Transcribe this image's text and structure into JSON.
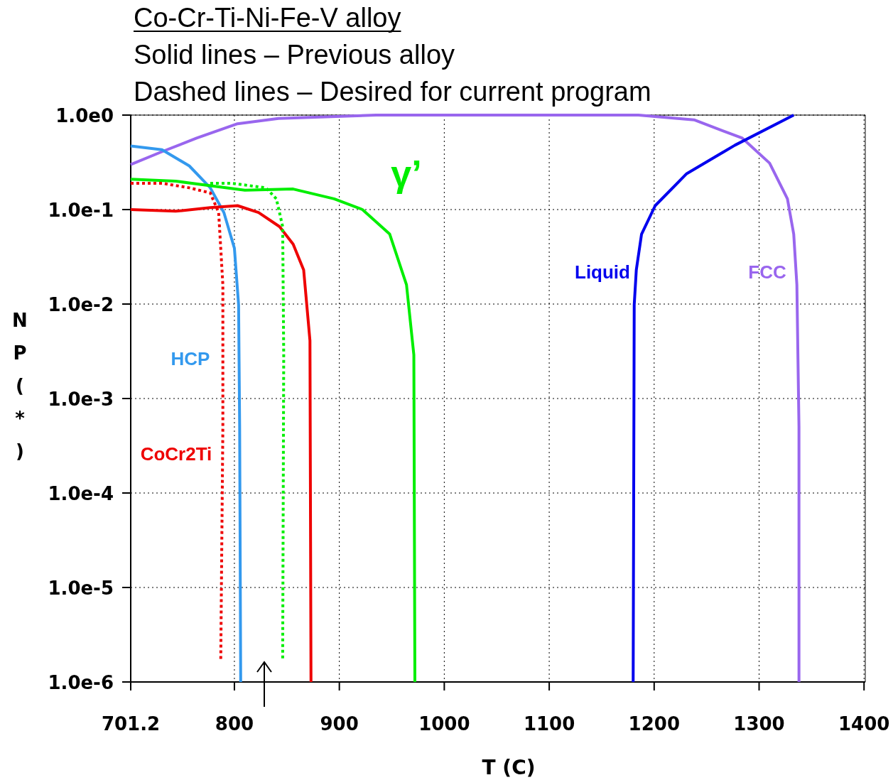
{
  "chart_data": {
    "type": "line",
    "title": "Co-Cr-Ti-Ni-Fe-V alloy",
    "subtitle": "Solid lines – Previous alloy",
    "annotations": [
      "Dashed lines – Desired for current program"
    ],
    "xlabel": "T (C)",
    "ylabel": "NP(*)",
    "log": "y",
    "grid": true,
    "xlim": [
      701.2,
      1401.2
    ],
    "xticks": [
      701.2,
      800,
      900,
      1000,
      1100,
      1200,
      1300,
      1400
    ],
    "ylim": [
      1e-06,
      1
    ],
    "yticks": [
      {
        "value": 1,
        "label": "1.0e0"
      },
      {
        "value": 0.1,
        "label": "1.0e-1"
      },
      {
        "value": 0.01,
        "label": "1.0e-2"
      },
      {
        "value": 0.001,
        "label": "1.0e-3"
      },
      {
        "value": 0.0001,
        "label": "1.0e-4"
      },
      {
        "value": 1e-05,
        "label": "1.0e-5"
      },
      {
        "value": 1e-06,
        "label": "1.0e-6"
      }
    ],
    "series": [
      {
        "name": "FCC",
        "color": "#9966ee",
        "line_style": "solid",
        "x": [
          701.2,
          731,
          764,
          803,
          842,
          935,
          1185,
          1238,
          1284,
          1310,
          1327,
          1333,
          1336,
          1338,
          1338
        ],
        "values": [
          0.3,
          0.41,
          0.57,
          0.81,
          0.92,
          1,
          1,
          0.89,
          0.57,
          0.31,
          0.13,
          0.055,
          0.016,
          0.0005,
          1e-06
        ]
      },
      {
        "name": "Liquid",
        "color": "#0000ee",
        "line_style": "solid",
        "x": [
          1180,
          1181,
          1183,
          1188,
          1201,
          1231,
          1277,
          1333
        ],
        "values": [
          1e-06,
          0.0098,
          0.023,
          0.055,
          0.11,
          0.24,
          0.48,
          1
        ]
      },
      {
        "name": "HCP",
        "color": "#3399ee",
        "line_style": "solid",
        "x": [
          701.2,
          731,
          757,
          777,
          790,
          800,
          804,
          805,
          806
        ],
        "values": [
          0.47,
          0.43,
          0.29,
          0.17,
          0.093,
          0.039,
          0.0098,
          0.0005,
          1e-06
        ]
      },
      {
        "name": "CoCr2Ti",
        "color": "#ee0000",
        "line_style": "solid",
        "x": [
          701.2,
          744,
          777,
          803,
          823,
          843,
          856,
          866,
          872,
          873
        ],
        "values": [
          0.1,
          0.096,
          0.105,
          0.11,
          0.093,
          0.066,
          0.043,
          0.023,
          0.0041,
          1e-06
        ]
      },
      {
        "name": "γ’",
        "color": "#00ee00",
        "line_style": "solid",
        "x": [
          701.2,
          744,
          810,
          856,
          895,
          922,
          948,
          964,
          971,
          972
        ],
        "values": [
          0.21,
          0.2,
          0.16,
          0.165,
          0.13,
          0.1,
          0.055,
          0.016,
          0.0029,
          1e-06
        ]
      },
      {
        "color": "#ee0000",
        "line_style": "dotted",
        "x": [
          701.2,
          731,
          757,
          777,
          785,
          789,
          789,
          787
        ],
        "values": [
          0.19,
          0.19,
          0.17,
          0.15,
          0.093,
          0.016,
          0.0005,
          1.7e-06
        ]
      },
      {
        "color": "#00ee00",
        "line_style": "dotted",
        "x": [
          777,
          797,
          830,
          840,
          846,
          847,
          846
        ],
        "values": [
          0.19,
          0.19,
          0.17,
          0.13,
          0.066,
          0.0029,
          1.7e-06
        ]
      }
    ]
  }
}
